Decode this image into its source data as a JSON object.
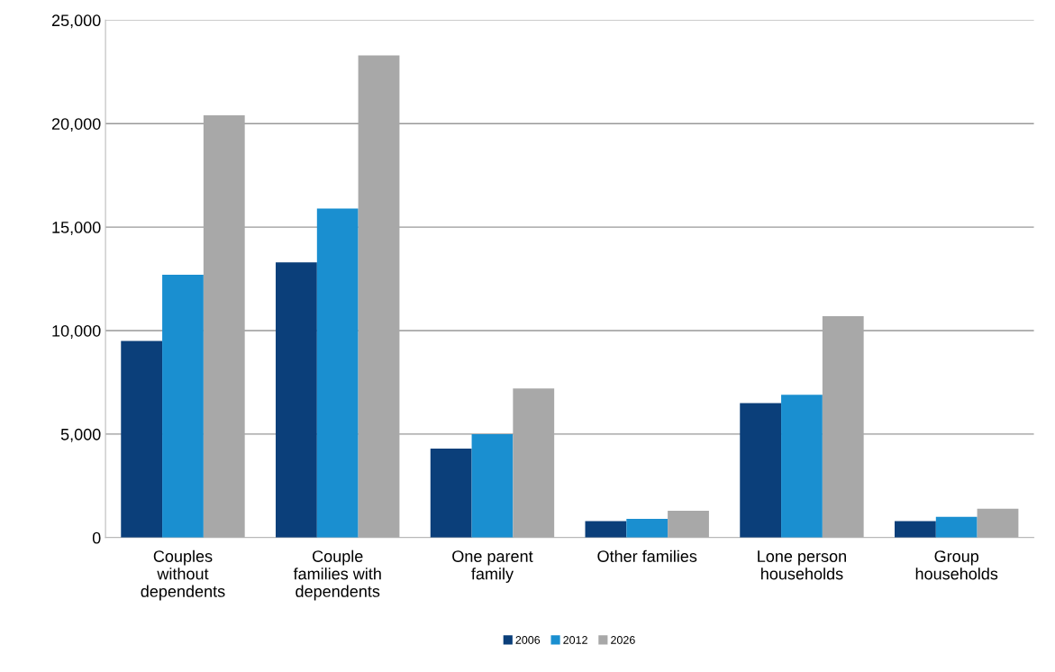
{
  "chart_data": {
    "type": "bar",
    "categories": [
      "Couples\nwithout\ndependents",
      "Couple\nfamilies with\ndependents",
      "One parent\nfamily",
      "Other families",
      "Lone person\nhouseholds",
      "Group\nhouseholds"
    ],
    "series": [
      {
        "name": "2006",
        "color": "#0b3f7a",
        "values": [
          9500,
          13300,
          4300,
          800,
          6500,
          800
        ]
      },
      {
        "name": "2012",
        "color": "#1a8fd0",
        "values": [
          12700,
          15900,
          5000,
          900,
          6900,
          1000
        ]
      },
      {
        "name": "2026",
        "color": "#a8a8a8",
        "values": [
          20400,
          23300,
          7200,
          1300,
          10700,
          1400
        ]
      }
    ],
    "ylim": [
      0,
      25000
    ],
    "yticks": [
      {
        "value": 0,
        "label": "0"
      },
      {
        "value": 5000,
        "label": "5,000"
      },
      {
        "value": 10000,
        "label": "10,000"
      },
      {
        "value": 15000,
        "label": "15,000"
      },
      {
        "value": 20000,
        "label": "20,000"
      },
      {
        "value": 25000,
        "label": "25,000"
      }
    ],
    "grid": "y",
    "legend": "bottom"
  }
}
